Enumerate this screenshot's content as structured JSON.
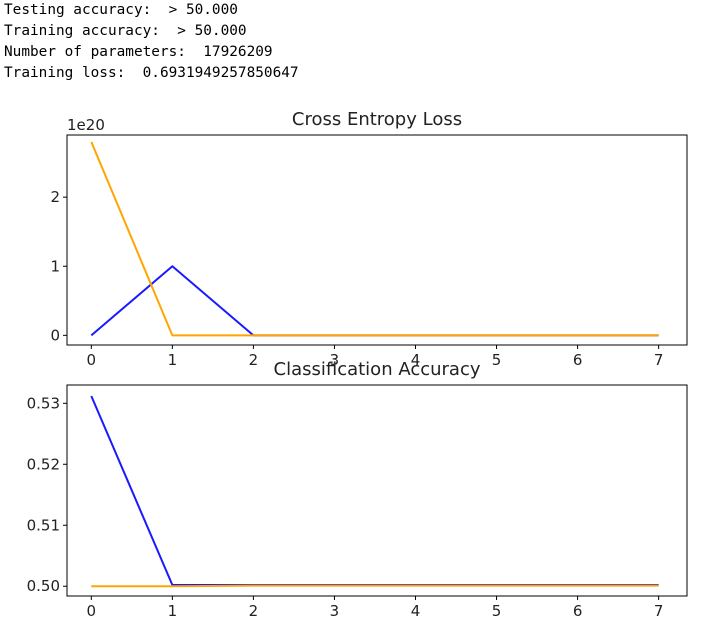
{
  "output_lines": [
    "Testing accuracy:  > 50.000",
    "Training accuracy:  > 50.000",
    "Number of parameters:  17926209",
    "Training loss:  0.6931949257850647"
  ],
  "colors": {
    "series_a": "#1a1aff",
    "series_b": "#ffa500",
    "axes": "#000000"
  },
  "chart_data": [
    {
      "type": "line",
      "title": "Cross Entropy Loss",
      "xlabel": "",
      "ylabel": "",
      "offset_text": "1e20",
      "x": [
        0,
        1,
        2,
        3,
        4,
        5,
        6,
        7
      ],
      "xticks": [
        "0",
        "1",
        "2",
        "3",
        "4",
        "5",
        "6",
        "7"
      ],
      "xlim": [
        -0.3,
        7.35
      ],
      "yticks": [
        0,
        1,
        2
      ],
      "ytick_labels": [
        "0",
        "1",
        "2"
      ],
      "ylim": [
        -0.14,
        2.9
      ],
      "series": [
        {
          "color": "#1a1aff",
          "values": [
            0,
            1.0,
            0,
            0,
            0,
            0,
            0,
            0
          ]
        },
        {
          "color": "#ffa500",
          "values": [
            2.8,
            0,
            0,
            0,
            0,
            0,
            0,
            0
          ]
        }
      ]
    },
    {
      "type": "line",
      "title": "Classification Accuracy",
      "xlabel": "",
      "ylabel": "",
      "x": [
        0,
        1,
        2,
        3,
        4,
        5,
        6,
        7
      ],
      "xticks": [
        "0",
        "1",
        "2",
        "3",
        "4",
        "5",
        "6",
        "7"
      ],
      "xlim": [
        -0.3,
        7.35
      ],
      "yticks": [
        0.5,
        0.51,
        0.52,
        0.53
      ],
      "ytick_labels": [
        "0.50",
        "0.51",
        "0.52",
        "0.53"
      ],
      "ylim": [
        0.4984,
        0.533
      ],
      "series": [
        {
          "color": "#1a1aff",
          "values": [
            0.5312,
            0.5002,
            0.5002,
            0.5002,
            0.5002,
            0.5002,
            0.5002,
            0.5002
          ]
        },
        {
          "color": "#ffa500",
          "values": [
            0.5,
            0.5,
            0.5001,
            0.5001,
            0.5001,
            0.5001,
            0.5001,
            0.5001
          ]
        }
      ]
    }
  ]
}
